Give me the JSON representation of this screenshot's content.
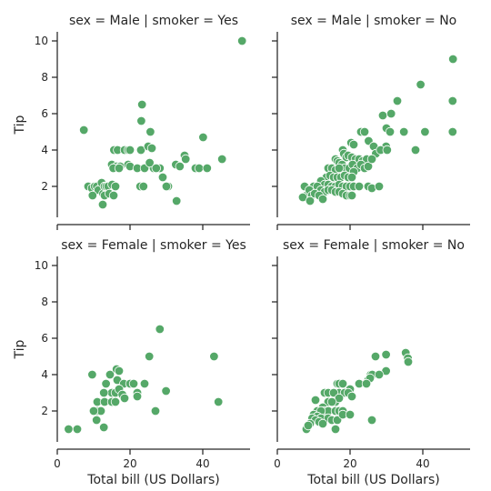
{
  "chart_data": {
    "type": "scatter",
    "layout": "facet-grid 2x2 (rows: sex, cols: smoker)",
    "xlabel": "Total bill (US Dollars)",
    "ylabel": "Tip",
    "xlim": [
      0,
      53
    ],
    "ylim": [
      0.3,
      10.5
    ],
    "xticks": [
      0,
      20,
      40
    ],
    "yticks": [
      2,
      4,
      6,
      8,
      10
    ],
    "color": "#55a868",
    "grid": false,
    "facets": [
      {
        "title": "sex = Male | smoker = Yes",
        "points": [
          [
            50.8,
            10
          ],
          [
            7.3,
            5.1
          ],
          [
            23.3,
            6.5
          ],
          [
            23.1,
            5.6
          ],
          [
            25.6,
            5.0
          ],
          [
            40.1,
            4.7
          ],
          [
            15.6,
            4.0
          ],
          [
            16.6,
            4.0
          ],
          [
            18.5,
            4.0
          ],
          [
            19.5,
            4.0
          ],
          [
            20.0,
            4.0
          ],
          [
            23.0,
            4.0
          ],
          [
            25.0,
            4.2
          ],
          [
            26.0,
            4.1
          ],
          [
            35.0,
            3.7
          ],
          [
            35.3,
            3.5
          ],
          [
            45.3,
            3.5
          ],
          [
            15.0,
            3.2
          ],
          [
            16.3,
            3.1
          ],
          [
            17.3,
            3.1
          ],
          [
            19.5,
            3.2
          ],
          [
            20.0,
            3.1
          ],
          [
            22.0,
            3.0
          ],
          [
            24.0,
            3.0
          ],
          [
            26.5,
            3.0
          ],
          [
            28.2,
            3.0
          ],
          [
            32.6,
            3.2
          ],
          [
            33.7,
            3.1
          ],
          [
            38.0,
            3.0
          ],
          [
            39.0,
            3.0
          ],
          [
            41.2,
            3.0
          ],
          [
            15.4,
            3.0
          ],
          [
            17.0,
            3.0
          ],
          [
            25.4,
            3.3
          ],
          [
            27.2,
            3.0
          ],
          [
            30.5,
            2.0
          ],
          [
            29.0,
            2.5
          ],
          [
            22.8,
            2.0
          ],
          [
            23.7,
            2.0
          ],
          [
            30.0,
            2.0
          ],
          [
            8.5,
            2.0
          ],
          [
            9.5,
            1.9
          ],
          [
            10.3,
            2.0
          ],
          [
            10.9,
            2.0
          ],
          [
            11.3,
            1.8
          ],
          [
            12.2,
            2.2
          ],
          [
            12.6,
            1.6
          ],
          [
            13.0,
            2.0
          ],
          [
            13.5,
            2.0
          ],
          [
            14.0,
            2.0
          ],
          [
            15.1,
            2.1
          ],
          [
            16.0,
            2.0
          ],
          [
            13.0,
            1.5
          ],
          [
            14.3,
            1.6
          ],
          [
            15.5,
            1.5
          ],
          [
            9.7,
            1.5
          ],
          [
            12.5,
            1.0
          ],
          [
            32.8,
            1.2
          ]
        ]
      },
      {
        "title": "sex = Male | smoker = No",
        "points": [
          [
            48.3,
            9.0
          ],
          [
            39.4,
            7.6
          ],
          [
            48.2,
            6.7
          ],
          [
            29.0,
            5.9
          ],
          [
            31.3,
            6.0
          ],
          [
            33.0,
            6.7
          ],
          [
            23.0,
            5.0
          ],
          [
            24.0,
            5.0
          ],
          [
            30.0,
            5.2
          ],
          [
            31.0,
            5.0
          ],
          [
            34.8,
            5.0
          ],
          [
            40.6,
            5.0
          ],
          [
            48.2,
            5.0
          ],
          [
            38.0,
            4.0
          ],
          [
            20.3,
            4.4
          ],
          [
            21.0,
            4.3
          ],
          [
            25.1,
            4.5
          ],
          [
            26.5,
            4.2
          ],
          [
            29.9,
            4.2
          ],
          [
            27.1,
            3.8
          ],
          [
            28.4,
            4.0
          ],
          [
            30.2,
            4.0
          ],
          [
            18.0,
            4.0
          ],
          [
            18.3,
            3.8
          ],
          [
            19.0,
            3.6
          ],
          [
            19.5,
            3.7
          ],
          [
            20.5,
            3.6
          ],
          [
            21.5,
            3.5
          ],
          [
            22.5,
            3.5
          ],
          [
            23.5,
            3.4
          ],
          [
            24.6,
            3.5
          ],
          [
            16.0,
            3.5
          ],
          [
            16.5,
            3.4
          ],
          [
            17.0,
            3.3
          ],
          [
            17.8,
            3.2
          ],
          [
            18.5,
            3.0
          ],
          [
            19.8,
            3.0
          ],
          [
            20.7,
            3.2
          ],
          [
            22.0,
            3.0
          ],
          [
            23.0,
            3.2
          ],
          [
            24.0,
            3.0
          ],
          [
            25.0,
            3.1
          ],
          [
            26.0,
            3.5
          ],
          [
            14.0,
            3.0
          ],
          [
            15.0,
            3.0
          ],
          [
            16.0,
            2.9
          ],
          [
            17.0,
            3.0
          ],
          [
            21.0,
            2.8
          ],
          [
            13.5,
            2.5
          ],
          [
            14.5,
            2.6
          ],
          [
            15.5,
            2.5
          ],
          [
            16.5,
            2.5
          ],
          [
            17.5,
            2.5
          ],
          [
            18.5,
            2.6
          ],
          [
            19.5,
            2.5
          ],
          [
            20.5,
            2.5
          ],
          [
            12.0,
            2.3
          ],
          [
            13.0,
            2.1
          ],
          [
            14.0,
            2.1
          ],
          [
            15.0,
            2.0
          ],
          [
            16.0,
            2.0
          ],
          [
            17.0,
            2.1
          ],
          [
            18.0,
            2.0
          ],
          [
            19.0,
            2.0
          ],
          [
            20.0,
            2.0
          ],
          [
            21.0,
            2.0
          ],
          [
            22.5,
            2.0
          ],
          [
            25.0,
            2.0
          ],
          [
            26.0,
            1.9
          ],
          [
            28.0,
            2.0
          ],
          [
            10.0,
            2.0
          ],
          [
            11.0,
            2.0
          ],
          [
            12.0,
            1.8
          ],
          [
            13.0,
            1.7
          ],
          [
            14.0,
            1.8
          ],
          [
            15.0,
            1.8
          ],
          [
            16.0,
            1.7
          ],
          [
            17.0,
            1.7
          ],
          [
            18.0,
            1.6
          ],
          [
            19.0,
            1.5
          ],
          [
            20.0,
            1.5
          ],
          [
            7.5,
            2.0
          ],
          [
            8.0,
            1.5
          ],
          [
            8.8,
            1.8
          ],
          [
            9.5,
            1.5
          ],
          [
            10.3,
            1.6
          ],
          [
            11.5,
            1.5
          ],
          [
            7.0,
            1.4
          ],
          [
            9.0,
            1.2
          ],
          [
            12.5,
            1.3
          ],
          [
            20.5,
            1.5
          ]
        ]
      },
      {
        "title": "sex = Female | smoker = Yes",
        "points": [
          [
            28.2,
            6.5
          ],
          [
            25.3,
            5.0
          ],
          [
            43.1,
            5.0
          ],
          [
            9.6,
            4.0
          ],
          [
            14.5,
            4.0
          ],
          [
            16.3,
            4.3
          ],
          [
            17.0,
            4.2
          ],
          [
            16.5,
            3.7
          ],
          [
            18.3,
            3.5
          ],
          [
            20.0,
            3.5
          ],
          [
            21.0,
            3.5
          ],
          [
            22.0,
            3.0
          ],
          [
            24.0,
            3.5
          ],
          [
            29.9,
            3.1
          ],
          [
            15.0,
            3.0
          ],
          [
            16.0,
            3.0
          ],
          [
            17.0,
            3.2
          ],
          [
            12.8,
            3.0
          ],
          [
            13.4,
            3.5
          ],
          [
            17.9,
            2.9
          ],
          [
            18.5,
            2.7
          ],
          [
            22.0,
            2.8
          ],
          [
            44.3,
            2.5
          ],
          [
            11.0,
            2.5
          ],
          [
            13.0,
            2.5
          ],
          [
            15.0,
            2.5
          ],
          [
            16.0,
            2.5
          ],
          [
            11.0,
            2.0
          ],
          [
            12.0,
            2.0
          ],
          [
            10.0,
            2.0
          ],
          [
            27.0,
            2.0
          ],
          [
            10.8,
            1.5
          ],
          [
            12.8,
            1.1
          ],
          [
            3.1,
            1.0
          ],
          [
            5.5,
            1.0
          ]
        ]
      },
      {
        "title": "sex = Female | smoker = No",
        "points": [
          [
            35.3,
            5.2
          ],
          [
            35.9,
            4.9
          ],
          [
            29.9,
            5.1
          ],
          [
            27.0,
            5.0
          ],
          [
            29.9,
            4.2
          ],
          [
            36.0,
            4.7
          ],
          [
            25.7,
            4.0
          ],
          [
            26.1,
            4.0
          ],
          [
            28.0,
            4.0
          ],
          [
            25.0,
            3.7
          ],
          [
            25.5,
            3.8
          ],
          [
            22.5,
            3.5
          ],
          [
            24.5,
            3.5
          ],
          [
            16.5,
            3.5
          ],
          [
            17.0,
            3.5
          ],
          [
            18.0,
            3.5
          ],
          [
            20.0,
            3.2
          ],
          [
            16.0,
            3.0
          ],
          [
            17.0,
            3.0
          ],
          [
            18.5,
            3.0
          ],
          [
            19.5,
            3.0
          ],
          [
            20.5,
            2.8
          ],
          [
            13.0,
            3.0
          ],
          [
            14.0,
            3.0
          ],
          [
            15.5,
            3.0
          ],
          [
            16.0,
            2.5
          ],
          [
            17.0,
            2.7
          ],
          [
            14.0,
            2.5
          ],
          [
            15.0,
            2.5
          ],
          [
            12.5,
            2.2
          ],
          [
            10.5,
            2.6
          ],
          [
            13.0,
            2.0
          ],
          [
            14.0,
            2.0
          ],
          [
            16.0,
            2.0
          ],
          [
            17.0,
            2.0
          ],
          [
            18.0,
            2.0
          ],
          [
            11.0,
            2.0
          ],
          [
            12.0,
            2.0
          ],
          [
            10.0,
            1.8
          ],
          [
            11.0,
            1.7
          ],
          [
            12.0,
            1.6
          ],
          [
            14.0,
            1.6
          ],
          [
            15.0,
            1.5
          ],
          [
            16.5,
            1.5
          ],
          [
            18.0,
            1.8
          ],
          [
            20.0,
            1.8
          ],
          [
            26.0,
            1.5
          ],
          [
            9.6,
            1.6
          ],
          [
            10.5,
            1.5
          ],
          [
            11.5,
            1.4
          ],
          [
            12.5,
            1.3
          ],
          [
            9.0,
            1.3
          ],
          [
            8.0,
            1.0
          ],
          [
            16.0,
            1.0
          ],
          [
            8.5,
            1.2
          ]
        ]
      }
    ]
  }
}
